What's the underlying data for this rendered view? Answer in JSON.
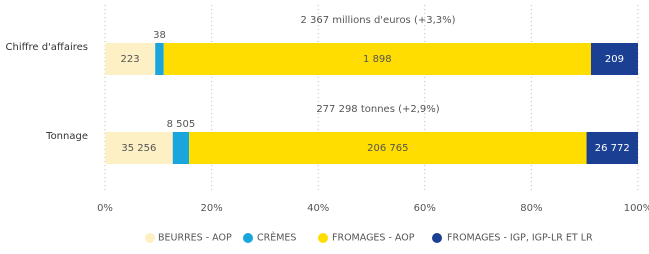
{
  "chart_data": {
    "type": "bar",
    "orientation": "horizontal",
    "stacking": "percent",
    "categories": [
      "Chiffre d'affaires",
      "Tonnage"
    ],
    "annotations": [
      "2 367 millions d'euros (+3,3%)",
      "277 298 tonnes (+2,9%)"
    ],
    "series": [
      {
        "name": "BEURRES - AOP",
        "color": "#fdf0c4",
        "values": [
          223,
          35256
        ],
        "value_labels": [
          "223",
          "35 256"
        ]
      },
      {
        "name": "CRÈMES",
        "color": "#1aa6dd",
        "values": [
          38,
          8505
        ],
        "value_labels": [
          "38",
          "8 505"
        ]
      },
      {
        "name": "FROMAGES - AOP",
        "color": "#ffdd00",
        "values": [
          1898,
          206765
        ],
        "value_labels": [
          "1 898",
          "206 765"
        ]
      },
      {
        "name": "FROMAGES - IGP, IGP-LR ET LR",
        "color": "#1a3f93",
        "values": [
          209,
          26772
        ],
        "value_labels": [
          "209",
          "26 772"
        ]
      }
    ],
    "xlim": [
      0,
      100
    ],
    "xticks": [
      {
        "value": 0,
        "label": "0%"
      },
      {
        "value": 20,
        "label": "20%"
      },
      {
        "value": 40,
        "label": "40%"
      },
      {
        "value": 60,
        "label": "60%"
      },
      {
        "value": 80,
        "label": "80%"
      },
      {
        "value": 100,
        "label": "100%"
      }
    ],
    "grid": true
  }
}
